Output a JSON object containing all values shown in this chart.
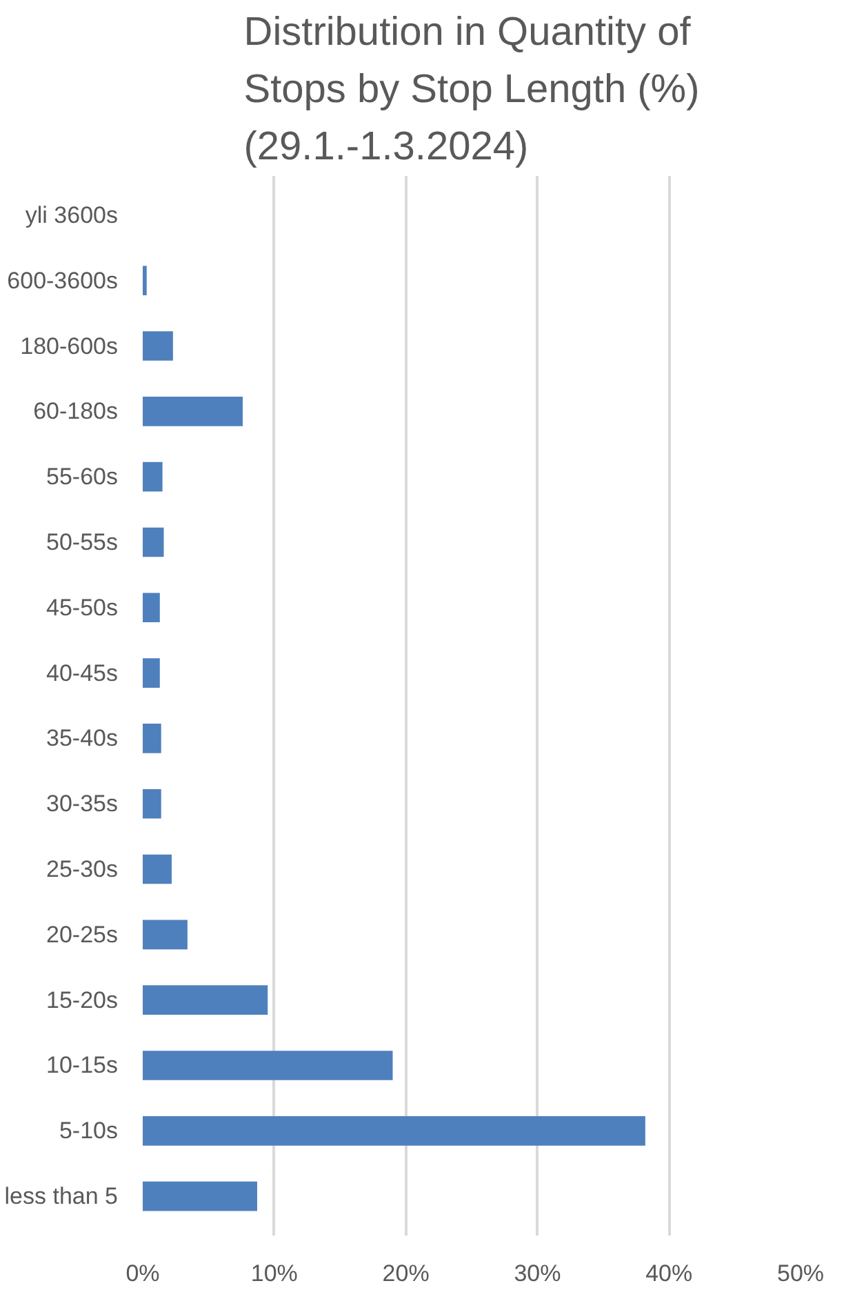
{
  "chart_data": {
    "type": "bar",
    "orientation": "horizontal",
    "title": "Distribution in Quantity of Stops by Stop Length (%) (29.1.-1.3.2024)",
    "categories": [
      "yli 3600s",
      "600-3600s",
      "180-600s",
      "60-180s",
      "55-60s",
      "50-55s",
      "45-50s",
      "40-45s",
      "35-40s",
      "30-35s",
      "25-30s",
      "20-25s",
      "15-20s",
      "10-15s",
      "5-10s",
      "less than 5"
    ],
    "values": [
      0,
      0.3,
      2.3,
      7.6,
      1.5,
      1.6,
      1.3,
      1.3,
      1.4,
      1.4,
      2.2,
      3.4,
      9.5,
      19.0,
      38.2,
      8.7
    ],
    "color": "#4e80bd",
    "xlim": [
      0,
      50
    ],
    "xticks": [
      {
        "value": 0,
        "label": "0%"
      },
      {
        "value": 10,
        "label": "10%"
      },
      {
        "value": 20,
        "label": "20%"
      },
      {
        "value": 30,
        "label": "30%"
      },
      {
        "value": 40,
        "label": "40%"
      },
      {
        "value": 50,
        "label": "50%"
      }
    ],
    "grid": "x"
  }
}
